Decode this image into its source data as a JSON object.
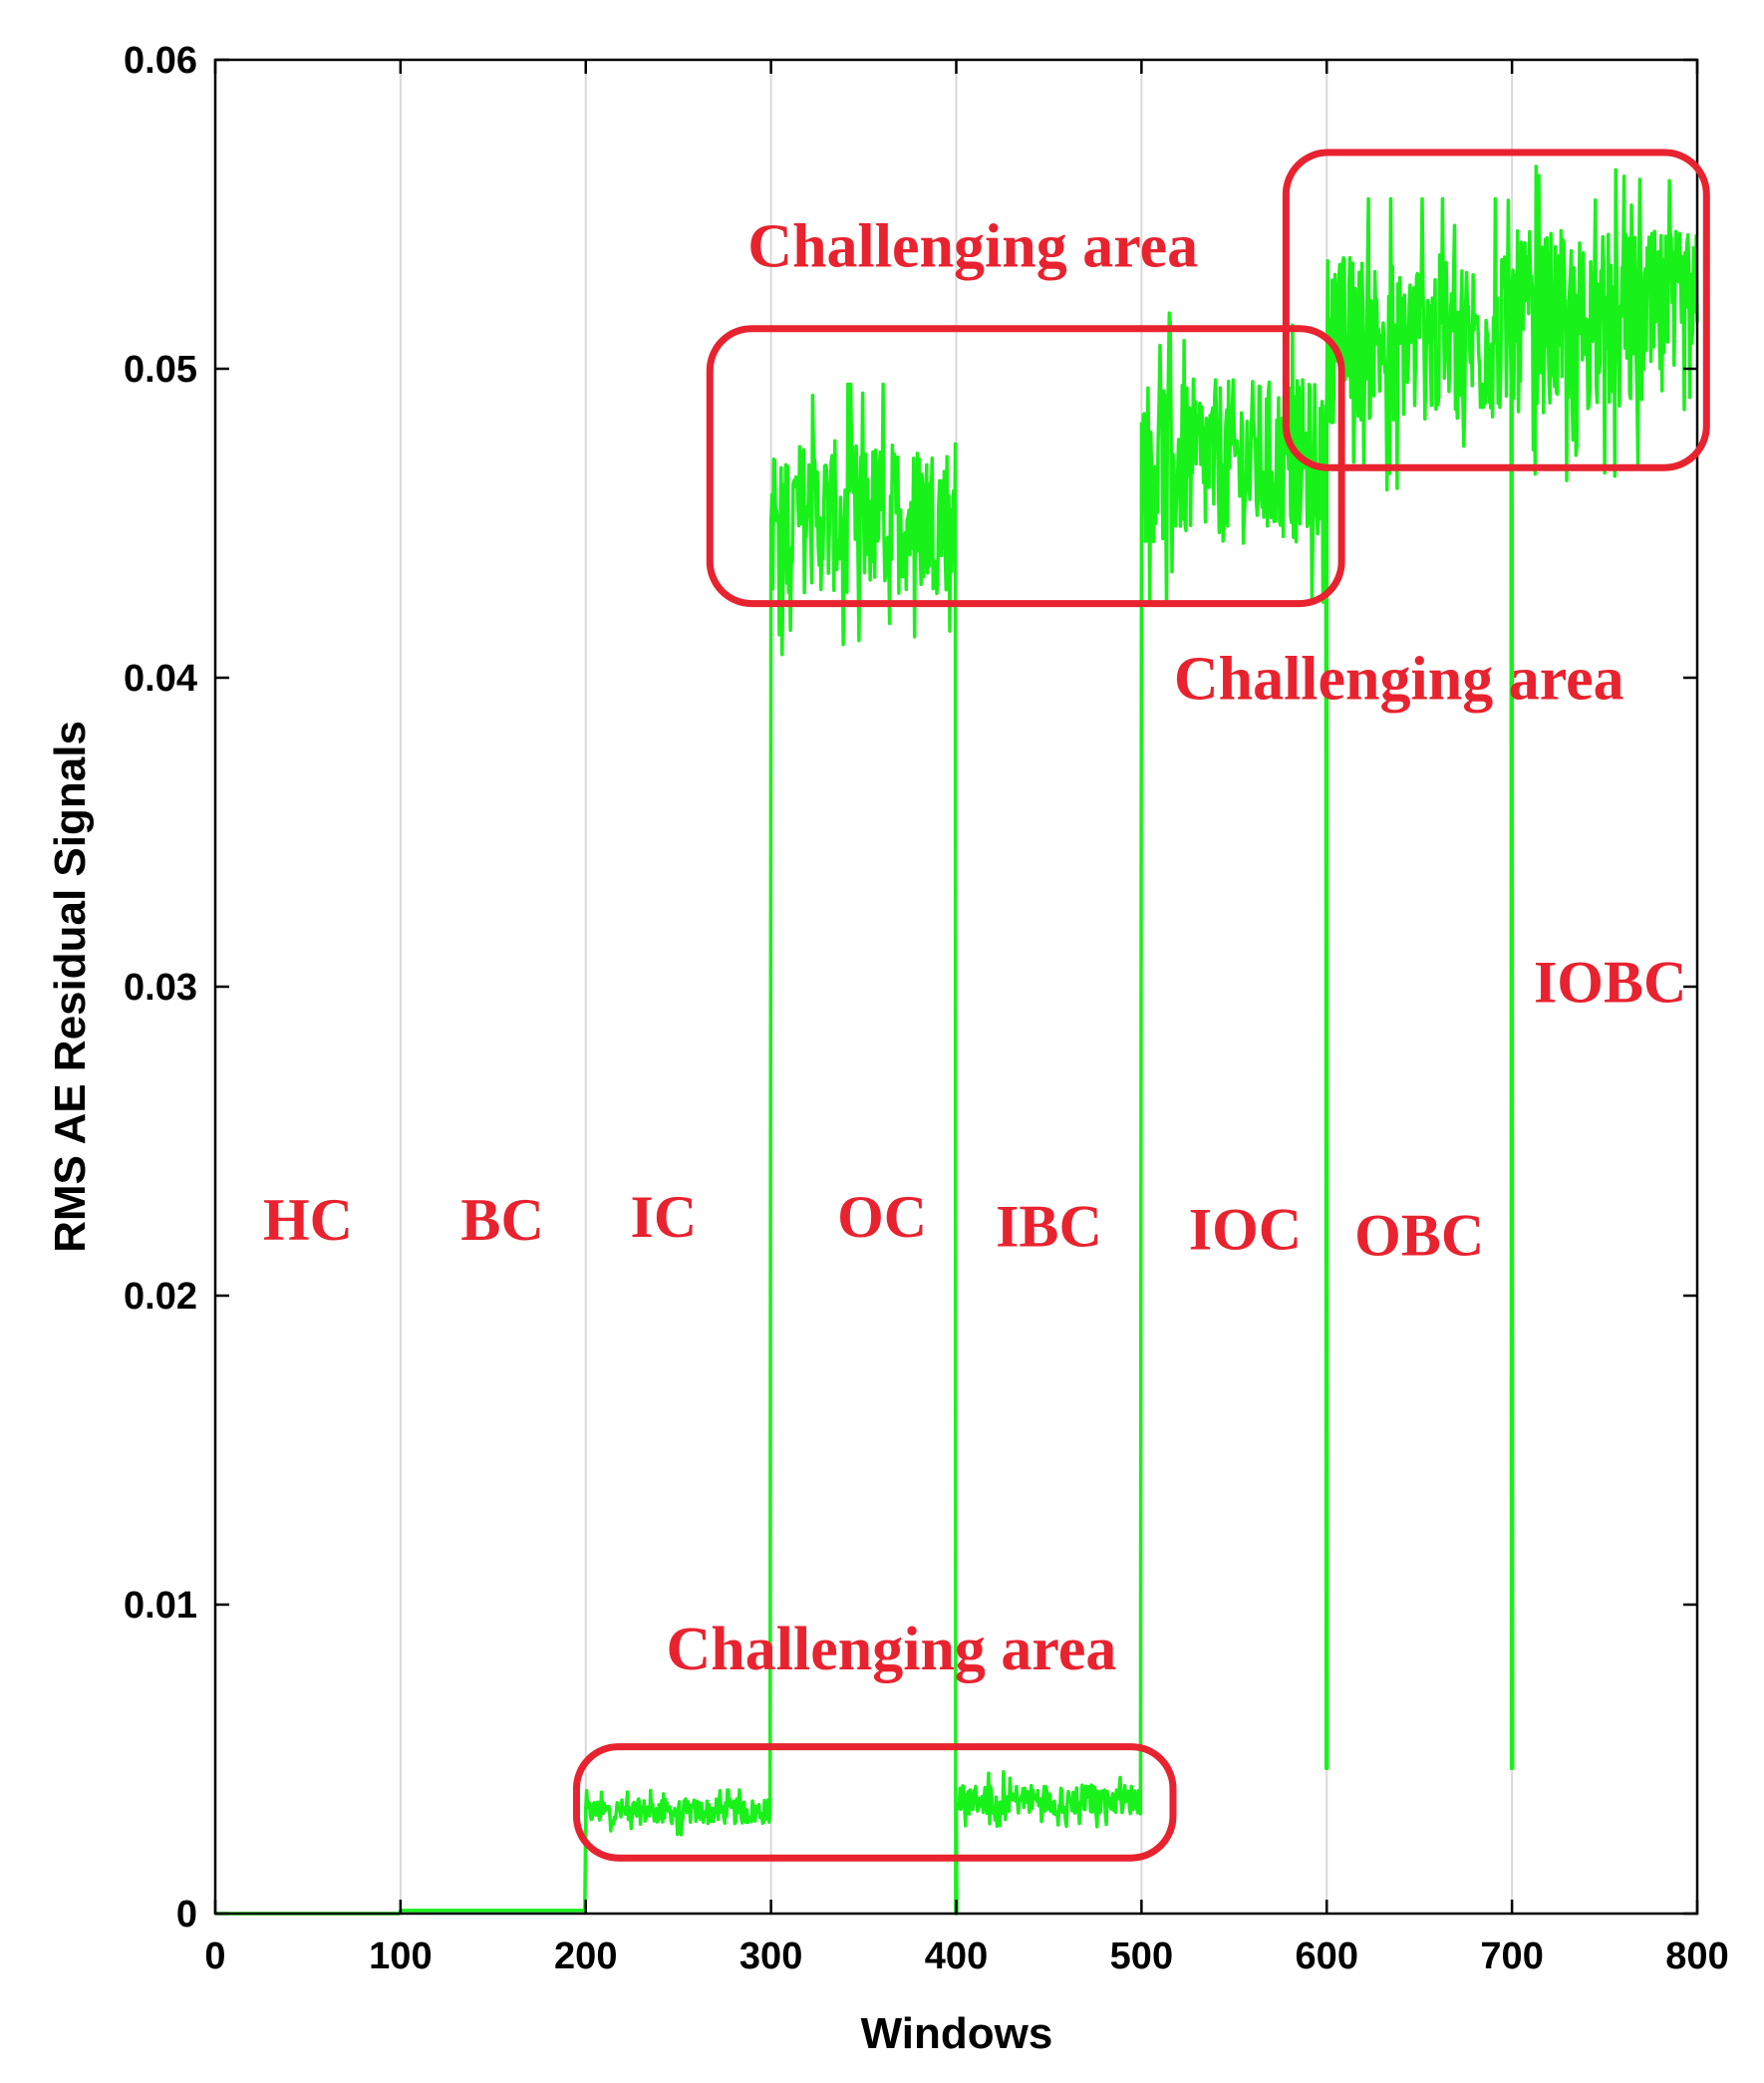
{
  "chart_data": {
    "type": "line",
    "xlabel": "Windows",
    "ylabel": "RMS AE Residual Signals",
    "xlim": [
      0,
      800
    ],
    "ylim": [
      0,
      0.06
    ],
    "x_ticks": [
      "0",
      "100",
      "200",
      "300",
      "400",
      "500",
      "600",
      "700",
      "800"
    ],
    "y_ticks": [
      "0",
      "0.01",
      "0.02",
      "0.03",
      "0.04",
      "0.05",
      "0.06"
    ],
    "grid": "vertical",
    "line_color": "#19f21a",
    "annotation_color": "#e8232f",
    "segments": [
      {
        "label": "HC",
        "x_range": [
          0,
          100
        ],
        "level": 0.0
      },
      {
        "label": "BC",
        "x_range": [
          100,
          200
        ],
        "level": 0.0001
      },
      {
        "label": "IC",
        "x_range": [
          200,
          300
        ],
        "level": 0.0033,
        "noise_range": [
          0.0025,
          0.004
        ]
      },
      {
        "label": "OC",
        "x_range": [
          300,
          400
        ],
        "level": 0.0452,
        "noise_range": [
          0.0405,
          0.0495
        ]
      },
      {
        "label": "IBC",
        "x_range": [
          400,
          500
        ],
        "level": 0.0037,
        "noise_range": [
          0.0028,
          0.0046
        ]
      },
      {
        "label": "IOC",
        "x_range": [
          500,
          600
        ],
        "level": 0.047,
        "noise_range": [
          0.0423,
          0.052
        ]
      },
      {
        "label": "OBC",
        "x_range": [
          600,
          700
        ],
        "level": 0.051,
        "noise_range": [
          0.0455,
          0.0555
        ]
      },
      {
        "label": "IOBC",
        "x_range": [
          700,
          800
        ],
        "level": 0.0515,
        "noise_range": [
          0.0458,
          0.0566
        ]
      }
    ],
    "dips": [
      {
        "x": 400,
        "y": 0.0
      },
      {
        "x": 600,
        "y": 0.0047
      },
      {
        "x": 700,
        "y": 0.0047
      }
    ],
    "condition_labels": [
      {
        "text": "HC",
        "x": 50,
        "y": 0.0218
      },
      {
        "text": "BC",
        "x": 155,
        "y": 0.0218
      },
      {
        "text": "IC",
        "x": 242,
        "y": 0.0219
      },
      {
        "text": "OC",
        "x": 360,
        "y": 0.0219
      },
      {
        "text": "IBC",
        "x": 450,
        "y": 0.0216
      },
      {
        "text": "IOC",
        "x": 556,
        "y": 0.0215
      },
      {
        "text": "OBC",
        "x": 650,
        "y": 0.0213
      },
      {
        "text": "IOBC",
        "x": 753,
        "y": 0.0295
      }
    ],
    "challenging_areas": [
      {
        "text": "Challenging area",
        "label_x": 409,
        "label_y": 0.0533,
        "x_range": [
          267,
          608
        ],
        "y_range": [
          0.0424,
          0.0513
        ]
      },
      {
        "text": "Challenging area",
        "label_x": 639,
        "label_y": 0.0393,
        "x_range": [
          578,
          805
        ],
        "y_range": [
          0.0468,
          0.057
        ]
      },
      {
        "text": "Challenging area",
        "label_x": 365,
        "label_y": 0.0079,
        "x_range": [
          195,
          517
        ],
        "y_range": [
          0.0018,
          0.0054
        ]
      }
    ]
  }
}
